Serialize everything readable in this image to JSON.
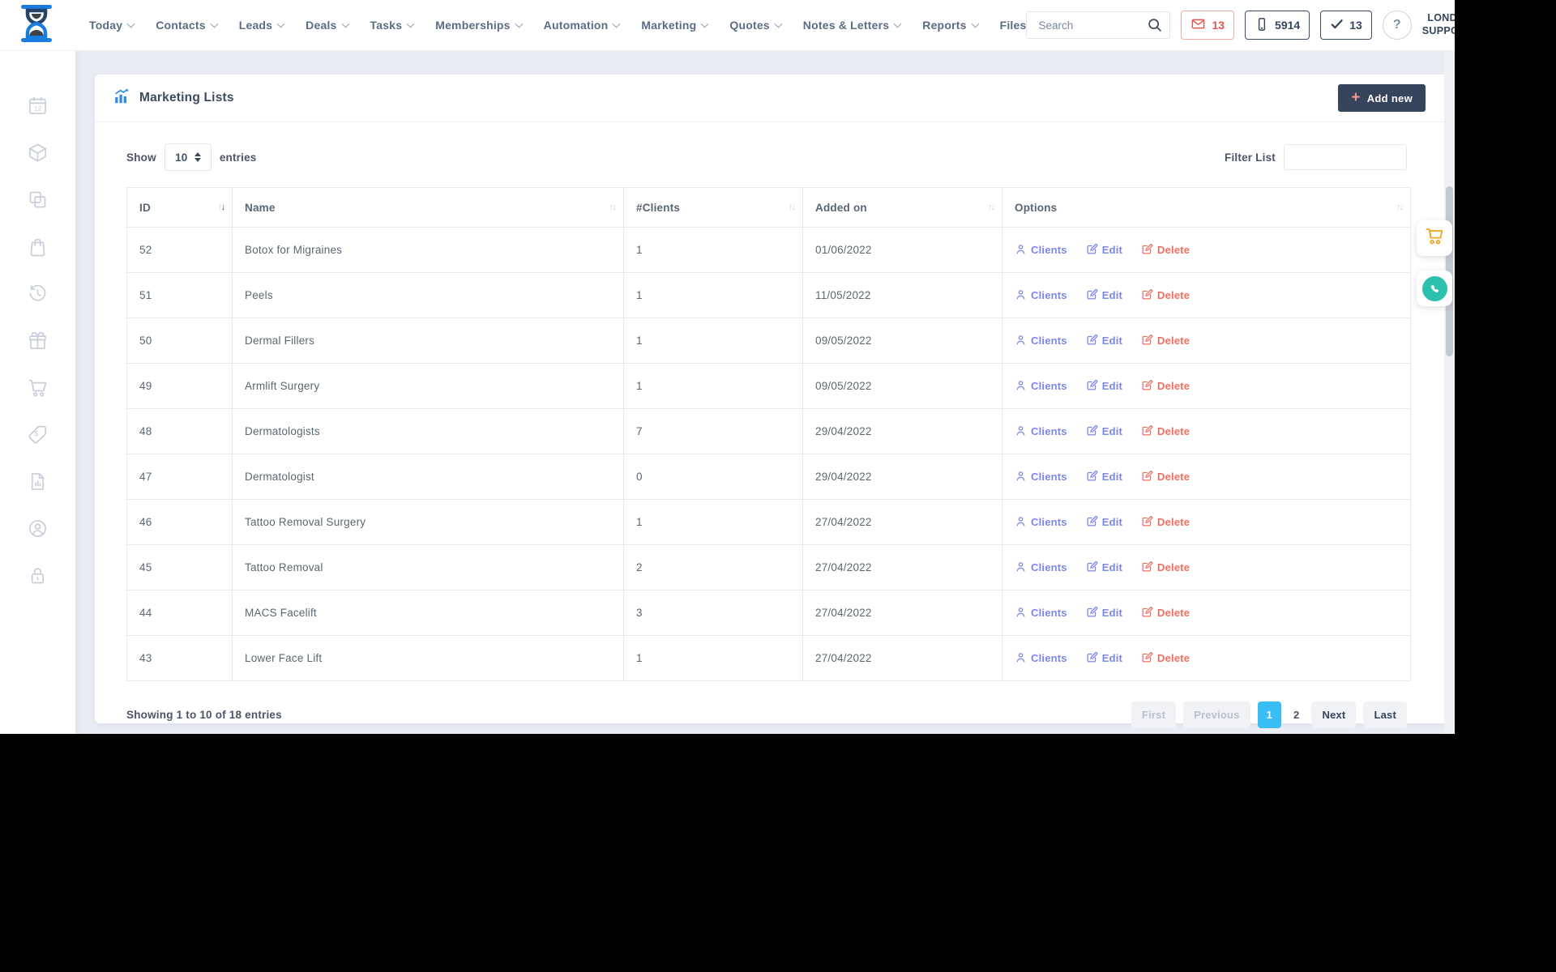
{
  "topnav": {
    "menu": [
      {
        "label": "Today",
        "chevron": true
      },
      {
        "label": "Contacts",
        "chevron": true
      },
      {
        "label": "Leads",
        "chevron": true
      },
      {
        "label": "Deals",
        "chevron": true
      },
      {
        "label": "Tasks",
        "chevron": true
      },
      {
        "label": "Memberships",
        "chevron": true
      },
      {
        "label": "Automation",
        "chevron": true
      },
      {
        "label": "Marketing",
        "chevron": true
      },
      {
        "label": "Quotes",
        "chevron": true
      },
      {
        "label": "Notes & Letters",
        "chevron": true
      },
      {
        "label": "Reports",
        "chevron": true
      },
      {
        "label": "Files",
        "chevron": false
      }
    ],
    "search_placeholder": "Search",
    "mail_count": "13",
    "phone_count": "5914",
    "check_count": "13",
    "help_label": "?",
    "account_line1": "LONDON",
    "account_line2": "SUPPORT"
  },
  "sidebar": {
    "icons": [
      "calendar-icon",
      "box-icon",
      "copy-icon",
      "shopping-bag-icon",
      "history-icon",
      "gift-icon",
      "cart-icon",
      "tag-icon",
      "report-icon",
      "user-circle-icon",
      "lock-icon"
    ]
  },
  "page": {
    "title": "Marketing Lists",
    "add_new_label": "Add new",
    "plus_glyph": "+",
    "show_label": "Show",
    "page_size": "10",
    "entries_label": "entries",
    "filter_label": "Filter List",
    "table": {
      "columns": [
        "ID",
        "Name",
        "#Clients",
        "Added on",
        "Options"
      ],
      "sorted_column": "ID",
      "sort_direction": "desc",
      "options_labels": {
        "clients": "Clients",
        "edit": "Edit",
        "delete": "Delete"
      },
      "rows": [
        {
          "id": "52",
          "name": "Botox for Migraines",
          "clients": "1",
          "added": "01/06/2022"
        },
        {
          "id": "51",
          "name": "Peels",
          "clients": "1",
          "added": "11/05/2022"
        },
        {
          "id": "50",
          "name": "Dermal Fillers",
          "clients": "1",
          "added": "09/05/2022"
        },
        {
          "id": "49",
          "name": "Armlift Surgery",
          "clients": "1",
          "added": "09/05/2022"
        },
        {
          "id": "48",
          "name": "Dermatologists",
          "clients": "7",
          "added": "29/04/2022"
        },
        {
          "id": "47",
          "name": "Dermatologist",
          "clients": "0",
          "added": "29/04/2022"
        },
        {
          "id": "46",
          "name": "Tattoo Removal Surgery",
          "clients": "1",
          "added": "27/04/2022"
        },
        {
          "id": "45",
          "name": "Tattoo Removal",
          "clients": "2",
          "added": "27/04/2022"
        },
        {
          "id": "44",
          "name": "MACS Facelift",
          "clients": "3",
          "added": "27/04/2022"
        },
        {
          "id": "43",
          "name": "Lower Face Lift",
          "clients": "1",
          "added": "27/04/2022"
        }
      ]
    },
    "footer": {
      "showing": "Showing 1 to 10 of 18 entries",
      "pagination": {
        "first": "First",
        "previous": "Previous",
        "pages": [
          "1",
          "2"
        ],
        "active_page": "1",
        "next": "Next",
        "last": "Last"
      }
    }
  },
  "colors": {
    "brand_blue": "#1b7ce0",
    "dark_navy": "#36455c",
    "link_purple": "#7b87e6",
    "delete_red": "#ee6e64",
    "mail_red": "#e4564d",
    "active_page_blue": "#38bdf5",
    "cart_orange": "#f5a623",
    "whatsapp_teal": "#2cc0ae",
    "content_bg": "#e9ecf3"
  }
}
